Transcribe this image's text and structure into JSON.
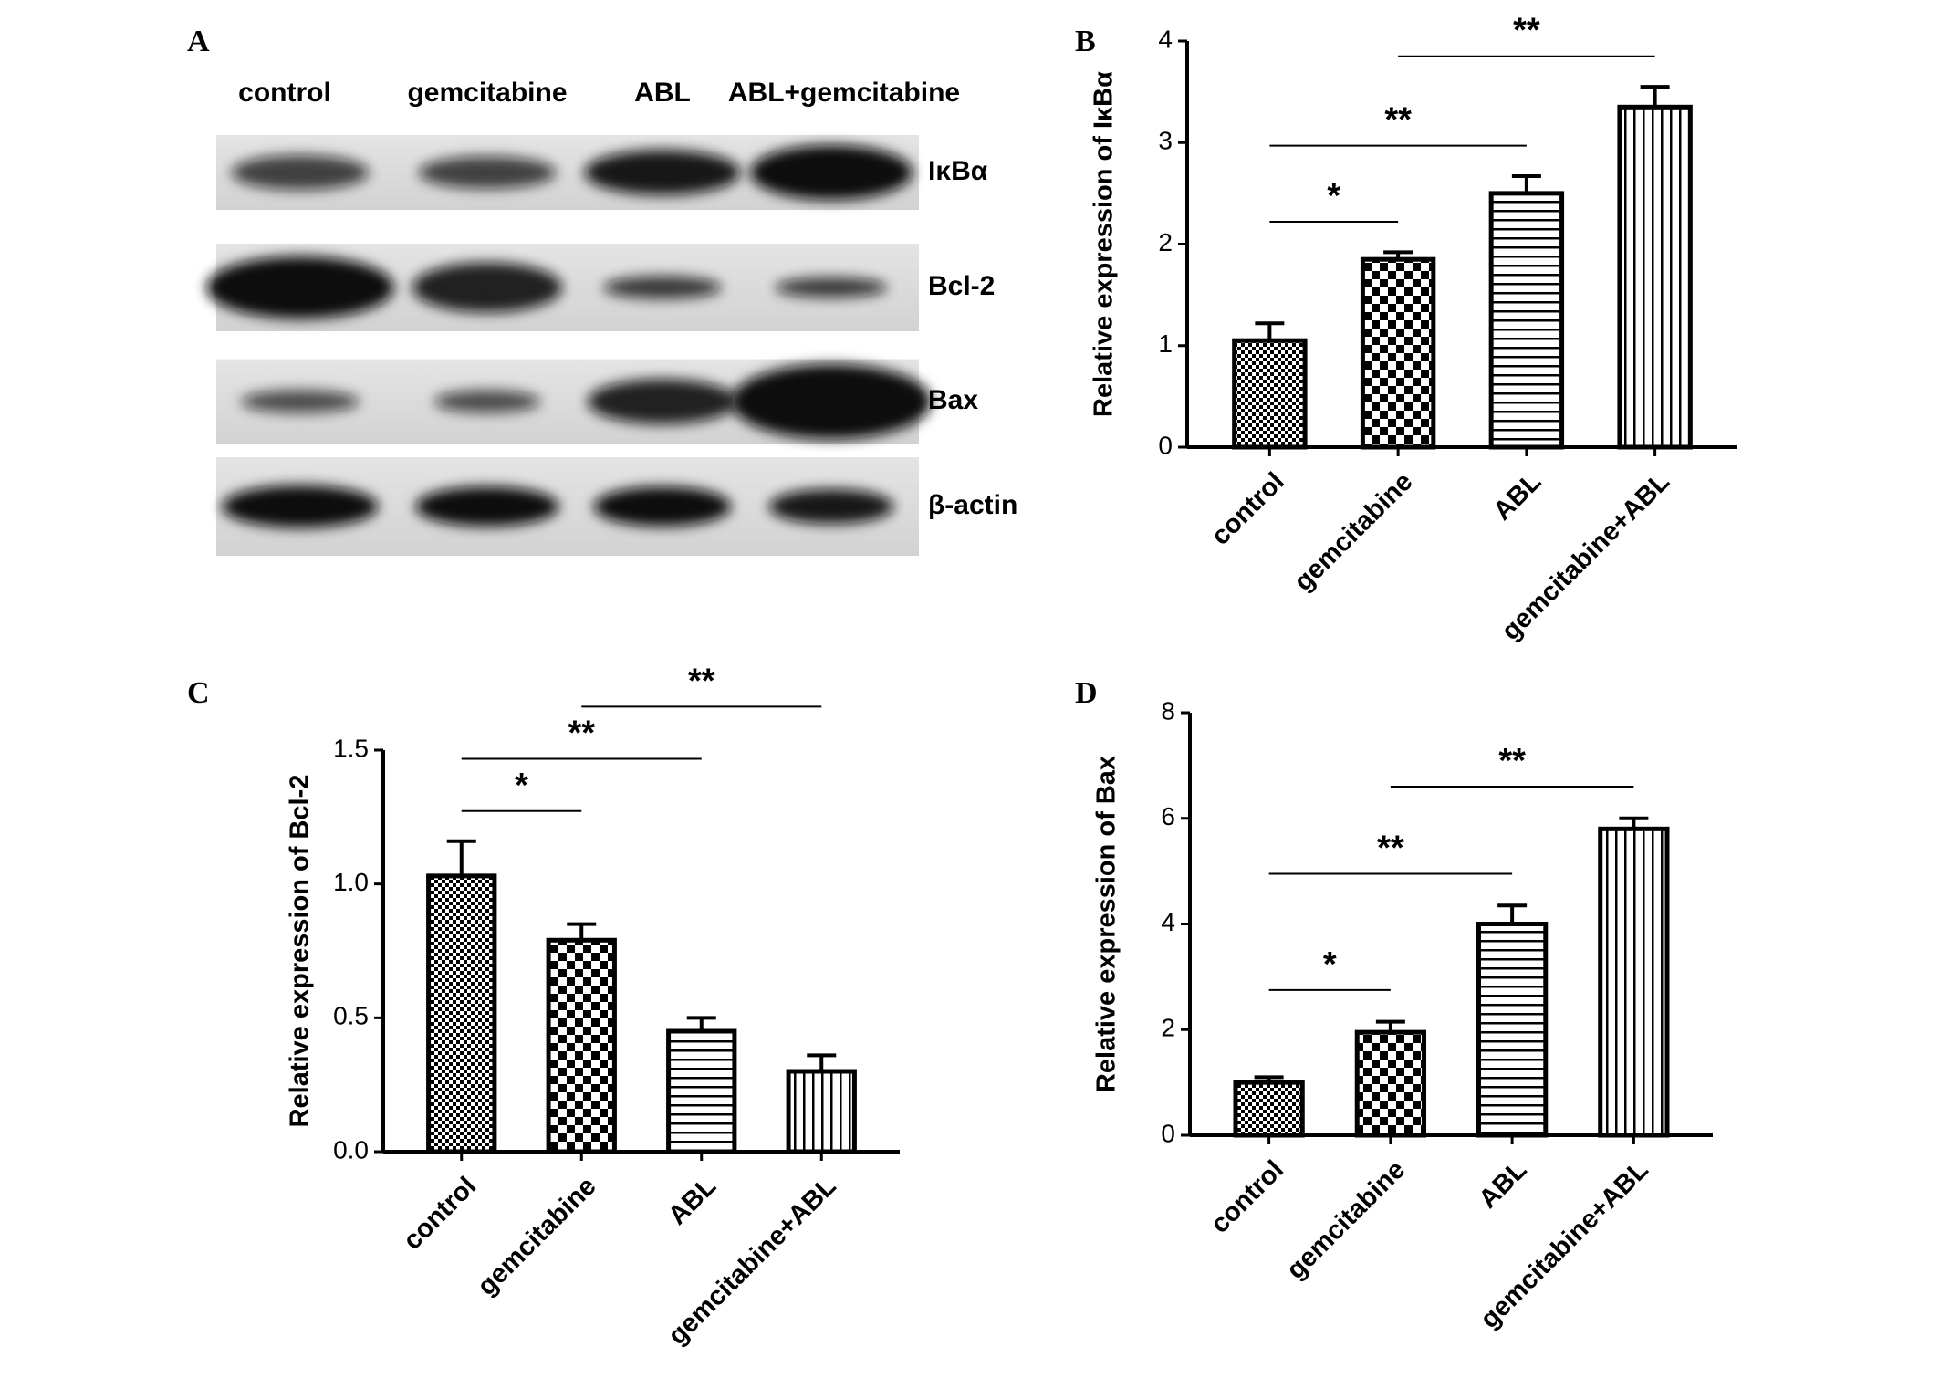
{
  "blot": {
    "panel": "A",
    "lanes": [
      "control",
      "gemcitabine",
      "ABL",
      "ABL+gemcitabine"
    ],
    "proteins": [
      "IκBα",
      "Bcl-2",
      "Bax",
      "β-actin"
    ]
  },
  "chart_data": [
    {
      "type": "bar",
      "panel": "B",
      "ylabel": "Relative expression of IκBα",
      "categories": [
        "control",
        "gemcitabine",
        "ABL",
        "gemcitabine+ABL"
      ],
      "values": [
        1.05,
        1.85,
        2.5,
        3.35
      ],
      "errors": [
        0.17,
        0.07,
        0.17,
        0.2
      ],
      "ylim": [
        0,
        4
      ],
      "yticks": [
        0,
        1,
        2,
        3,
        4
      ],
      "color": "#000000",
      "comparisons": [
        {
          "label": "*",
          "between": [
            "control",
            "gemcitabine"
          ]
        },
        {
          "label": "**",
          "between": [
            "control",
            "ABL"
          ]
        },
        {
          "label": "**",
          "between": [
            "gemcitabine",
            "gemcitabine+ABL"
          ]
        }
      ]
    },
    {
      "type": "bar",
      "panel": "C",
      "ylabel": "Relative expression of Bcl-2",
      "categories": [
        "control",
        "gemcitabine",
        "ABL",
        "gemcitabine+ABL"
      ],
      "values": [
        1.03,
        0.79,
        0.45,
        0.3
      ],
      "errors": [
        0.13,
        0.06,
        0.05,
        0.06
      ],
      "ylim": [
        0,
        1.5
      ],
      "yticks": [
        {
          "value": 0,
          "label": "0.0"
        },
        {
          "value": 0.5,
          "label": "0.5"
        },
        {
          "value": 1,
          "label": "1.0"
        },
        {
          "value": 1.5,
          "label": "1.5"
        }
      ],
      "color": "#000000",
      "comparisons": [
        {
          "label": "*",
          "between": [
            "control",
            "gemcitabine"
          ]
        },
        {
          "label": "**",
          "between": [
            "control",
            "ABL"
          ]
        },
        {
          "label": "**",
          "between": [
            "gemcitabine",
            "gemcitabine+ABL"
          ]
        }
      ]
    },
    {
      "type": "bar",
      "panel": "D",
      "ylabel": "Relative expression of Bax",
      "categories": [
        "control",
        "gemcitabine",
        "ABL",
        "gemcitabine+ABL"
      ],
      "values": [
        1.0,
        1.95,
        4.0,
        5.8
      ],
      "errors": [
        0.1,
        0.2,
        0.35,
        0.2
      ],
      "ylim": [
        0,
        8
      ],
      "yticks": [
        0,
        2,
        4,
        6,
        8
      ],
      "color": "#000000",
      "comparisons": [
        {
          "label": "*",
          "between": [
            "control",
            "gemcitabine"
          ]
        },
        {
          "label": "**",
          "between": [
            "control",
            "ABL"
          ]
        },
        {
          "label": "**",
          "between": [
            "gemcitabine",
            "gemcitabine+ABL"
          ]
        }
      ]
    }
  ]
}
